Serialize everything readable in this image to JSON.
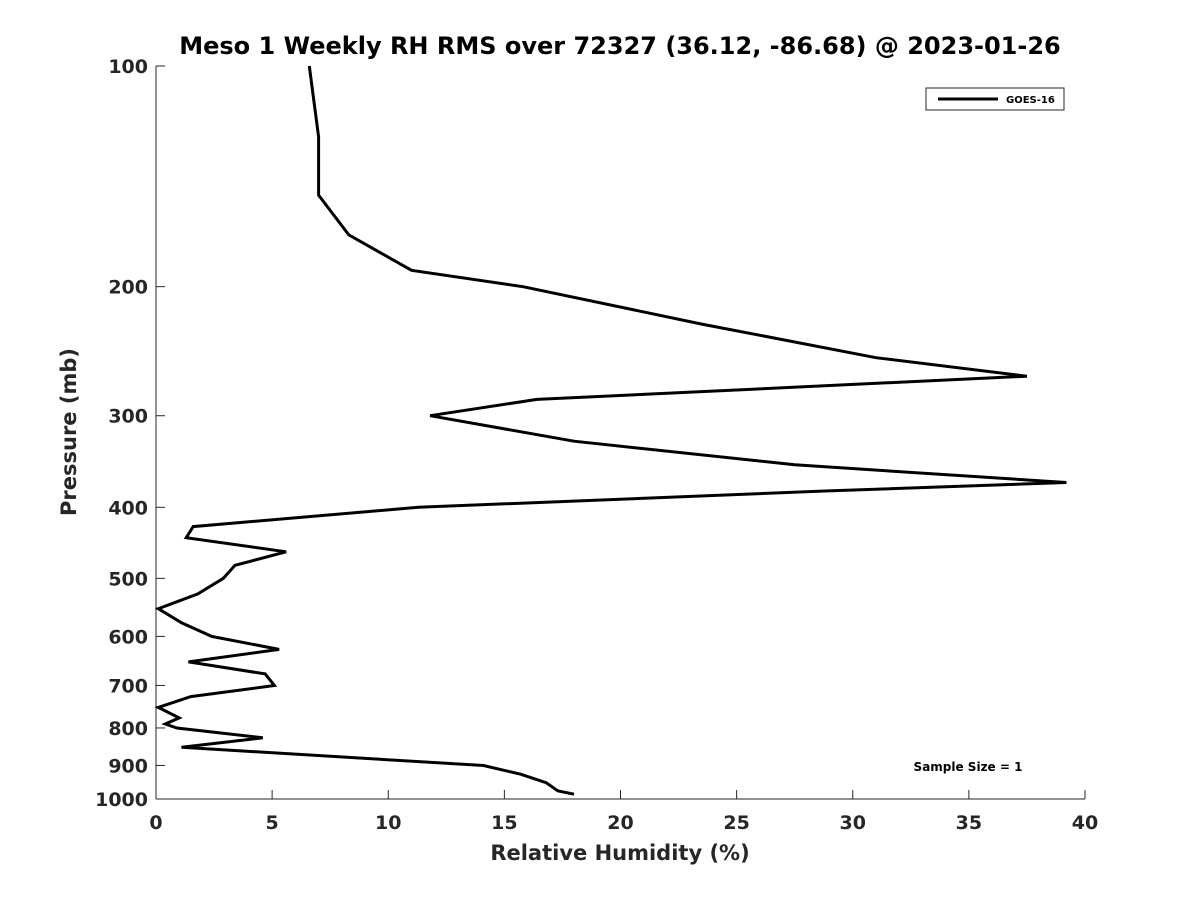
{
  "chart_data": {
    "type": "line",
    "title": "Meso 1 Weekly RH RMS over 72327 (36.12, -86.68) @ 2023-01-26",
    "xlabel": "Relative Humidity (%)",
    "ylabel": "Pressure (mb)",
    "xlim": [
      0,
      40
    ],
    "ylim": [
      100,
      1000
    ],
    "y_scale": "log",
    "y_reversed": true,
    "x_ticks": [
      "0",
      "5",
      "10",
      "15",
      "20",
      "25",
      "30",
      "35",
      "40"
    ],
    "y_ticks": [
      "100",
      "200",
      "300",
      "400",
      "500",
      "600",
      "700",
      "800",
      "900",
      "1000"
    ],
    "grid": false,
    "legend_position": "top-right",
    "annotation": "Sample Size = 1",
    "line_color": "#000000",
    "series": [
      {
        "name": "GOES-16",
        "points": [
          [
            6.6,
            100
          ],
          [
            7.0,
            125
          ],
          [
            7.0,
            150
          ],
          [
            8.3,
            170
          ],
          [
            11.0,
            190
          ],
          [
            15.8,
            200
          ],
          [
            23.5,
            225
          ],
          [
            31.0,
            250
          ],
          [
            37.5,
            265
          ],
          [
            16.4,
            285
          ],
          [
            11.8,
            300
          ],
          [
            18.0,
            325
          ],
          [
            27.5,
            350
          ],
          [
            39.2,
            370
          ],
          [
            28.8,
            380
          ],
          [
            11.3,
            400
          ],
          [
            1.6,
            425
          ],
          [
            1.3,
            440
          ],
          [
            5.6,
            460
          ],
          [
            3.4,
            480
          ],
          [
            2.9,
            500
          ],
          [
            1.8,
            525
          ],
          [
            0.1,
            550
          ],
          [
            1.1,
            575
          ],
          [
            2.4,
            600
          ],
          [
            5.3,
            625
          ],
          [
            1.4,
            650
          ],
          [
            4.7,
            675
          ],
          [
            5.1,
            700
          ],
          [
            1.5,
            725
          ],
          [
            0.1,
            750
          ],
          [
            1.0,
            775
          ],
          [
            0.4,
            790
          ],
          [
            0.9,
            800
          ],
          [
            4.6,
            825
          ],
          [
            1.1,
            850
          ],
          [
            14.1,
            900
          ],
          [
            15.7,
            925
          ],
          [
            16.8,
            950
          ],
          [
            17.3,
            975
          ],
          [
            18.0,
            985
          ]
        ]
      }
    ]
  }
}
